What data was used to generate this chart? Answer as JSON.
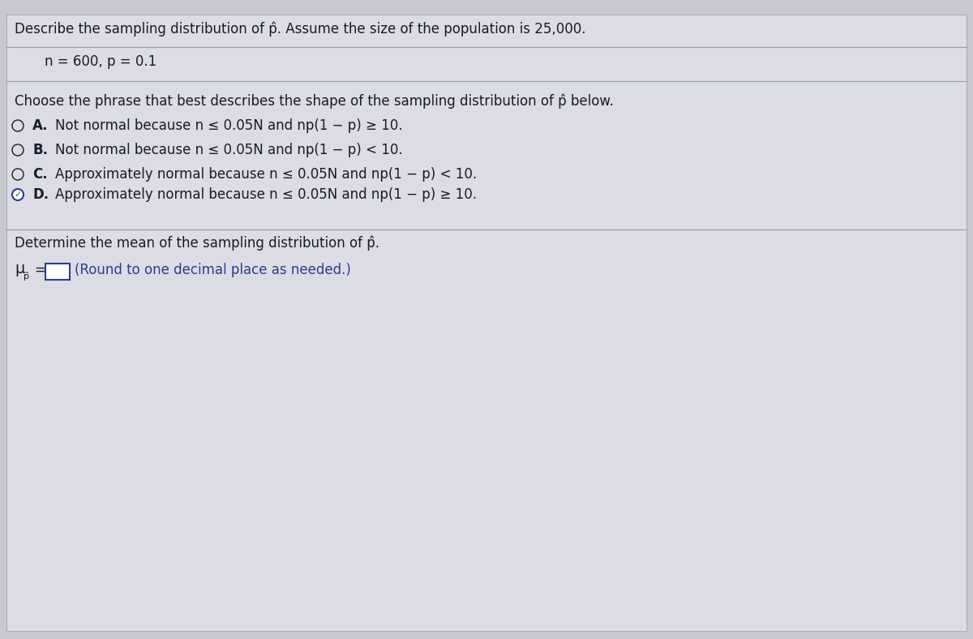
{
  "bg_color": "#c8c8d0",
  "content_bg": "#e8e8ec",
  "title_line1": "Describe the sampling distribution of p̂. Assume the size of the population is 25,000.",
  "params_line": "    n = 600, p = 0.1",
  "question_line": "Choose the phrase that best describes the shape of the sampling distribution of p̂ below.",
  "options": [
    {
      "label": "A.",
      "text": "Not normal because n ≤ 0.05N and np(1 − p) ≥ 10.",
      "selected": false
    },
    {
      "label": "B.",
      "text": "Not normal because n ≤ 0.05N and np(1 − p) < 10.",
      "selected": false
    },
    {
      "label": "C.",
      "text": "Approximately normal because n ≤ 0.05N and np(1 − p) < 10.",
      "selected": false
    },
    {
      "label": "D.",
      "text": "Approximately normal because n ≤ 0.05N and np(1 − p) ≥ 10.",
      "selected": true
    }
  ],
  "mean_hint": "(Round to one decimal place as needed.)",
  "text_color": "#1a1a2e",
  "blue_color": "#2c3e8c",
  "line_color": "#999aaa",
  "title_font_size": 12,
  "option_font_size": 12,
  "mean_font_size": 12
}
